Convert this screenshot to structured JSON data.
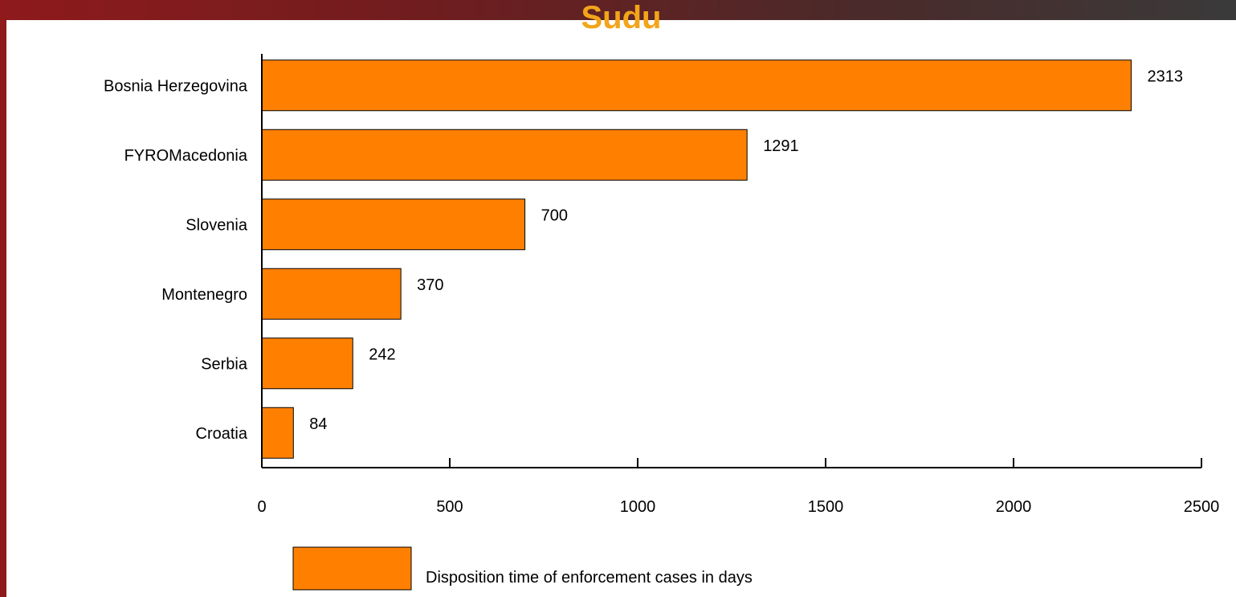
{
  "slide": {
    "title": "Sudu"
  },
  "chart_data": {
    "type": "bar",
    "orientation": "horizontal",
    "categories": [
      "Bosnia Herzegovina",
      "FYROMacedonia",
      "Slovenia",
      "Montenegro",
      "Serbia",
      "Croatia"
    ],
    "series": [
      {
        "name": "Disposition time of enforcement cases in days",
        "values": [
          2313,
          1291,
          700,
          370,
          242,
          84
        ]
      }
    ],
    "xlim": [
      0,
      2500
    ],
    "xticks": [
      0,
      500,
      1000,
      1500,
      2000,
      2500
    ],
    "grid": false,
    "legend_position": "bottom-left",
    "bar_color": "#ff8000"
  }
}
